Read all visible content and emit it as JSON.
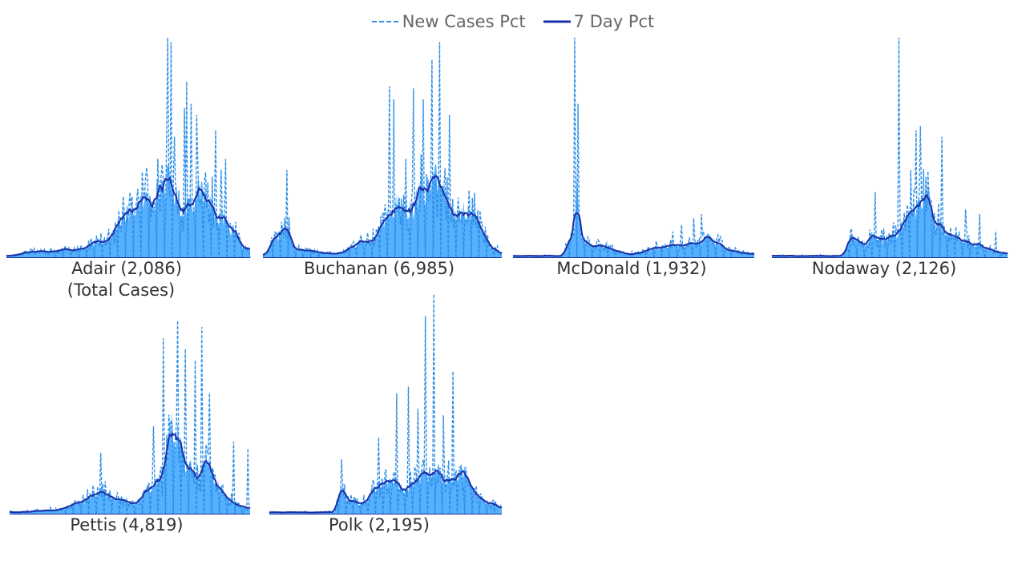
{
  "legend": {
    "position": "top-center",
    "items": [
      {
        "name": "New Cases Pct",
        "style": "dashed",
        "color": "#2f8fe6"
      },
      {
        "name": "7 Day Pct",
        "style": "solid",
        "color": "#1b2fa6"
      }
    ]
  },
  "colors": {
    "area": "#55b0ff",
    "new_cases": "#2f8fe6",
    "seven_day": "#1b2fa6"
  },
  "chart_data": [
    {
      "type": "area",
      "county": "Adair",
      "label": "Adair (2,086)",
      "sublabel": "(Total Cases)",
      "peaks": [
        [
          0.0,
          0.01
        ],
        [
          0.12,
          0.03
        ],
        [
          0.3,
          0.04
        ],
        [
          0.4,
          0.08
        ],
        [
          0.5,
          0.2
        ],
        [
          0.55,
          0.25
        ],
        [
          0.6,
          0.28
        ],
        [
          0.66,
          0.35
        ],
        [
          0.68,
          0.32
        ],
        [
          0.72,
          0.22
        ],
        [
          0.76,
          0.27
        ],
        [
          0.8,
          0.3
        ],
        [
          0.84,
          0.25
        ],
        [
          0.88,
          0.18
        ],
        [
          0.93,
          0.12
        ],
        [
          0.97,
          0.05
        ],
        [
          1.0,
          0.04
        ]
      ],
      "spikes": [
        [
          0.66,
          1.0
        ],
        [
          0.675,
          0.98
        ],
        [
          0.74,
          0.8
        ],
        [
          0.76,
          0.7
        ],
        [
          0.73,
          0.68
        ],
        [
          0.78,
          0.65
        ],
        [
          0.81,
          0.62
        ],
        [
          0.86,
          0.58
        ],
        [
          0.84,
          0.5
        ],
        [
          0.9,
          0.45
        ],
        [
          0.88,
          0.4
        ],
        [
          0.69,
          0.55
        ],
        [
          0.62,
          0.45
        ],
        [
          0.58,
          0.35
        ],
        [
          1.0,
          0.32
        ]
      ]
    },
    {
      "type": "area",
      "county": "Buchanan",
      "label": "Buchanan (6,985)",
      "sublabel": "",
      "peaks": [
        [
          0.0,
          0.01
        ],
        [
          0.06,
          0.1
        ],
        [
          0.1,
          0.14
        ],
        [
          0.14,
          0.04
        ],
        [
          0.3,
          0.02
        ],
        [
          0.45,
          0.08
        ],
        [
          0.52,
          0.18
        ],
        [
          0.56,
          0.24
        ],
        [
          0.62,
          0.22
        ],
        [
          0.68,
          0.32
        ],
        [
          0.72,
          0.35
        ],
        [
          0.74,
          0.3
        ],
        [
          0.78,
          0.22
        ],
        [
          0.82,
          0.22
        ],
        [
          0.86,
          0.22
        ],
        [
          0.91,
          0.14
        ],
        [
          0.96,
          0.05
        ],
        [
          1.0,
          0.02
        ]
      ],
      "spikes": [
        [
          0.74,
          0.98
        ],
        [
          0.71,
          0.9
        ],
        [
          0.81,
          0.83
        ],
        [
          0.53,
          0.78
        ],
        [
          0.55,
          0.72
        ],
        [
          0.63,
          0.77
        ],
        [
          0.67,
          0.72
        ],
        [
          0.78,
          0.65
        ],
        [
          0.65,
          0.55
        ],
        [
          0.49,
          0.4
        ],
        [
          0.1,
          0.4
        ],
        [
          0.6,
          0.45
        ],
        [
          0.84,
          0.42
        ]
      ]
    },
    {
      "type": "area",
      "county": "McDonald",
      "label": "McDonald (1,932)",
      "sublabel": "",
      "peaks": [
        [
          0.0,
          0.01
        ],
        [
          0.2,
          0.01
        ],
        [
          0.25,
          0.1
        ],
        [
          0.265,
          0.33
        ],
        [
          0.28,
          0.1
        ],
        [
          0.32,
          0.06
        ],
        [
          0.5,
          0.02
        ],
        [
          0.62,
          0.05
        ],
        [
          0.72,
          0.06
        ],
        [
          0.78,
          0.07
        ],
        [
          0.8,
          0.1
        ],
        [
          0.84,
          0.07
        ],
        [
          0.9,
          0.03
        ],
        [
          1.0,
          0.02
        ]
      ],
      "spikes": [
        [
          0.255,
          1.0
        ],
        [
          0.265,
          0.95
        ],
        [
          0.27,
          0.7
        ],
        [
          0.81,
          0.22
        ],
        [
          0.78,
          0.2
        ],
        [
          0.75,
          0.18
        ],
        [
          0.7,
          0.15
        ],
        [
          0.66,
          0.12
        ],
        [
          0.86,
          0.1
        ]
      ]
    },
    {
      "type": "area",
      "county": "Nodaway",
      "label": "Nodaway (2,126)",
      "sublabel": "",
      "peaks": [
        [
          0.0,
          0.01
        ],
        [
          0.3,
          0.01
        ],
        [
          0.34,
          0.1
        ],
        [
          0.37,
          0.08
        ],
        [
          0.4,
          0.06
        ],
        [
          0.44,
          0.12
        ],
        [
          0.46,
          0.08
        ],
        [
          0.52,
          0.1
        ],
        [
          0.56,
          0.16
        ],
        [
          0.62,
          0.22
        ],
        [
          0.66,
          0.26
        ],
        [
          0.7,
          0.16
        ],
        [
          0.76,
          0.1
        ],
        [
          0.84,
          0.07
        ],
        [
          0.92,
          0.04
        ],
        [
          1.0,
          0.02
        ]
      ],
      "spikes": [
        [
          0.54,
          1.0
        ],
        [
          0.63,
          0.6
        ],
        [
          0.61,
          0.58
        ],
        [
          0.72,
          0.55
        ],
        [
          0.59,
          0.4
        ],
        [
          0.44,
          0.3
        ],
        [
          0.66,
          0.35
        ],
        [
          0.82,
          0.22
        ],
        [
          0.88,
          0.2
        ],
        [
          0.95,
          0.12
        ]
      ]
    },
    {
      "type": "area",
      "county": "Pettis",
      "label": "Pettis (4,819)",
      "sublabel": "",
      "peaks": [
        [
          0.0,
          0.01
        ],
        [
          0.2,
          0.02
        ],
        [
          0.3,
          0.06
        ],
        [
          0.38,
          0.1
        ],
        [
          0.44,
          0.08
        ],
        [
          0.52,
          0.05
        ],
        [
          0.58,
          0.12
        ],
        [
          0.63,
          0.16
        ],
        [
          0.66,
          0.3
        ],
        [
          0.68,
          0.4
        ],
        [
          0.7,
          0.38
        ],
        [
          0.72,
          0.25
        ],
        [
          0.74,
          0.24
        ],
        [
          0.78,
          0.18
        ],
        [
          0.82,
          0.25
        ],
        [
          0.86,
          0.15
        ],
        [
          0.9,
          0.08
        ],
        [
          0.96,
          0.04
        ],
        [
          1.0,
          0.03
        ]
      ],
      "spikes": [
        [
          0.65,
          1.0
        ],
        [
          0.64,
          0.8
        ],
        [
          0.7,
          0.88
        ],
        [
          0.73,
          0.75
        ],
        [
          0.8,
          0.85
        ],
        [
          0.77,
          0.7
        ],
        [
          0.83,
          0.55
        ],
        [
          0.6,
          0.4
        ],
        [
          0.38,
          0.28
        ],
        [
          0.87,
          0.35
        ],
        [
          0.93,
          0.33
        ],
        [
          0.99,
          0.3
        ]
      ]
    },
    {
      "type": "area",
      "county": "Polk",
      "label": "Polk (2,195)",
      "sublabel": "",
      "peaks": [
        [
          0.0,
          0.01
        ],
        [
          0.28,
          0.01
        ],
        [
          0.31,
          0.12
        ],
        [
          0.34,
          0.06
        ],
        [
          0.4,
          0.05
        ],
        [
          0.46,
          0.12
        ],
        [
          0.5,
          0.15
        ],
        [
          0.54,
          0.17
        ],
        [
          0.58,
          0.12
        ],
        [
          0.63,
          0.14
        ],
        [
          0.68,
          0.18
        ],
        [
          0.72,
          0.22
        ],
        [
          0.76,
          0.14
        ],
        [
          0.8,
          0.15
        ],
        [
          0.83,
          0.2
        ],
        [
          0.86,
          0.15
        ],
        [
          0.9,
          0.07
        ],
        [
          0.96,
          0.05
        ],
        [
          1.0,
          0.03
        ]
      ],
      "spikes": [
        [
          0.71,
          1.0
        ],
        [
          0.67,
          0.9
        ],
        [
          0.79,
          0.65
        ],
        [
          0.81,
          0.6
        ],
        [
          0.55,
          0.55
        ],
        [
          0.6,
          0.58
        ],
        [
          0.52,
          0.4
        ],
        [
          0.64,
          0.48
        ],
        [
          0.75,
          0.45
        ],
        [
          0.47,
          0.35
        ],
        [
          0.31,
          0.25
        ],
        [
          0.87,
          0.18
        ]
      ]
    }
  ]
}
